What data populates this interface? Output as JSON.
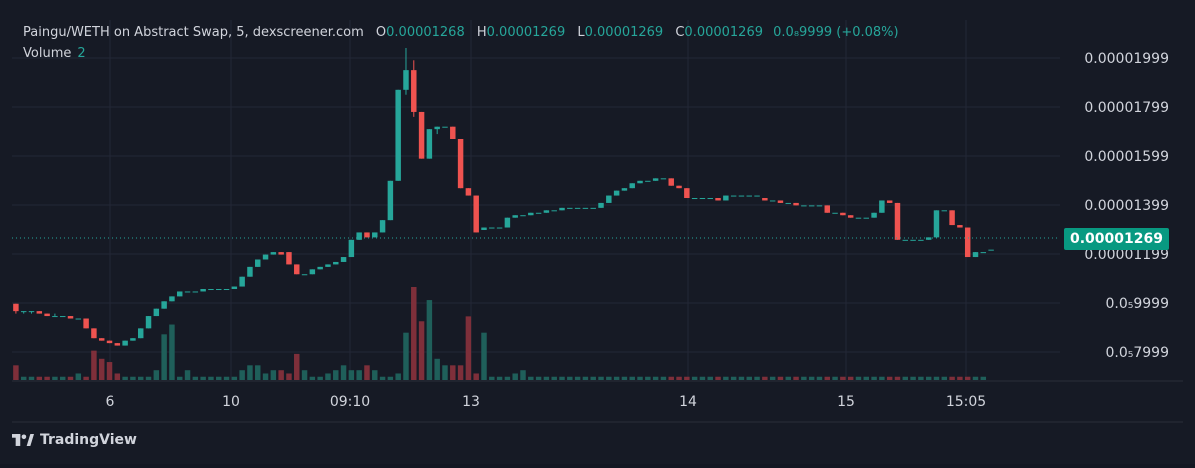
{
  "header": {
    "symbol": "Paingu/WETH on Abstract Swap, 5, dexscreener.com",
    "o_label": "O",
    "o_value": "0.00001268",
    "h_label": "H",
    "h_value": "0.00001269",
    "l_label": "L",
    "l_value": "0.00001269",
    "c_label": "C",
    "c_value": "0.00001269",
    "change": "0.0₈9999 (+0.08%)",
    "volume_label": "Volume",
    "volume_value": "2"
  },
  "price_axis": {
    "ticks": [
      "0.00001999",
      "0.00001799",
      "0.00001599",
      "0.00001399",
      "0.00001199",
      "0.0₅9999",
      "0.0₅7999"
    ],
    "current_price": "0.00001269"
  },
  "time_axis": {
    "ticks": [
      "6",
      "10",
      "09:10",
      "13",
      "14",
      "15",
      "15:05"
    ]
  },
  "branding": {
    "name": "TradingView"
  },
  "colors": {
    "up": "#26a69a",
    "down": "#ef5350",
    "vol_up": "#1f5f5a",
    "vol_down": "#7e2f3a",
    "background": "#161a25",
    "grid": "#232836"
  },
  "chart_data": {
    "type": "candlestick",
    "title": "Paingu/WETH on Abstract Swap, 5, dexscreener.com",
    "ylim": [
      7.4e-06,
      2.09e-05
    ],
    "candles": [
      [
        1.05e-05,
        1.05e-05,
        1.01e-05,
        1.02e-05
      ],
      [
        1.02e-05,
        1.02e-05,
        1.01e-05,
        1.02e-05
      ],
      [
        1.02e-05,
        1.02e-05,
        1.01e-05,
        1.02e-05
      ],
      [
        1.02e-05,
        1.02e-05,
        1.01e-05,
        1.01e-05
      ],
      [
        1.01e-05,
        1.01e-05,
        1e-05,
        1e-05
      ],
      [
        1e-05,
        1.01e-05,
        1e-05,
        1e-05
      ],
      [
        1e-05,
        1e-05,
        1e-05,
        1e-05
      ],
      [
        1e-05,
        1e-05,
        9.9e-06,
        9.9e-06
      ],
      [
        9.9e-06,
        9.9e-06,
        9.9e-06,
        9.9e-06
      ],
      [
        9.9e-06,
        9.9e-06,
        9.5e-06,
        9.5e-06
      ],
      [
        9.5e-06,
        9.5e-06,
        9.1e-06,
        9.1e-06
      ],
      [
        9.1e-06,
        9.1e-06,
        9e-06,
        9e-06
      ],
      [
        9e-06,
        9e-06,
        8.9e-06,
        8.9e-06
      ],
      [
        8.9e-06,
        8.9e-06,
        8.8e-06,
        8.8e-06
      ],
      [
        8.8e-06,
        9e-06,
        8.8e-06,
        9e-06
      ],
      [
        9e-06,
        9.1e-06,
        9e-06,
        9.1e-06
      ],
      [
        9.1e-06,
        9.5e-06,
        9.1e-06,
        9.5e-06
      ],
      [
        9.5e-06,
        1e-05,
        9.5e-06,
        1e-05
      ],
      [
        1e-05,
        1.03e-05,
        1e-05,
        1.03e-05
      ],
      [
        1.03e-05,
        1.06e-05,
        1.03e-05,
        1.06e-05
      ],
      [
        1.06e-05,
        1.08e-05,
        1.06e-05,
        1.08e-05
      ],
      [
        1.08e-05,
        1.1e-05,
        1.08e-05,
        1.1e-05
      ],
      [
        1.1e-05,
        1.1e-05,
        1.1e-05,
        1.1e-05
      ],
      [
        1.1e-05,
        1.1e-05,
        1.1e-05,
        1.1e-05
      ],
      [
        1.1e-05,
        1.11e-05,
        1.1e-05,
        1.11e-05
      ],
      [
        1.11e-05,
        1.11e-05,
        1.11e-05,
        1.11e-05
      ],
      [
        1.11e-05,
        1.11e-05,
        1.11e-05,
        1.11e-05
      ],
      [
        1.11e-05,
        1.11e-05,
        1.11e-05,
        1.11e-05
      ],
      [
        1.11e-05,
        1.12e-05,
        1.11e-05,
        1.12e-05
      ],
      [
        1.12e-05,
        1.16e-05,
        1.12e-05,
        1.16e-05
      ],
      [
        1.16e-05,
        1.2e-05,
        1.16e-05,
        1.2e-05
      ],
      [
        1.2e-05,
        1.23e-05,
        1.2e-05,
        1.23e-05
      ],
      [
        1.23e-05,
        1.25e-05,
        1.23e-05,
        1.25e-05
      ],
      [
        1.25e-05,
        1.26e-05,
        1.25e-05,
        1.26e-05
      ],
      [
        1.26e-05,
        1.26e-05,
        1.25e-05,
        1.25e-05
      ],
      [
        1.26e-05,
        1.26e-05,
        1.21e-05,
        1.21e-05
      ],
      [
        1.21e-05,
        1.21e-05,
        1.17e-05,
        1.17e-05
      ],
      [
        1.17e-05,
        1.17e-05,
        1.17e-05,
        1.17e-05
      ],
      [
        1.17e-05,
        1.19e-05,
        1.17e-05,
        1.19e-05
      ],
      [
        1.19e-05,
        1.2e-05,
        1.19e-05,
        1.2e-05
      ],
      [
        1.2e-05,
        1.21e-05,
        1.2e-05,
        1.21e-05
      ],
      [
        1.21e-05,
        1.22e-05,
        1.21e-05,
        1.22e-05
      ],
      [
        1.22e-05,
        1.24e-05,
        1.22e-05,
        1.24e-05
      ],
      [
        1.24e-05,
        1.31e-05,
        1.24e-05,
        1.31e-05
      ],
      [
        1.31e-05,
        1.34e-05,
        1.31e-05,
        1.34e-05
      ],
      [
        1.34e-05,
        1.34e-05,
        1.32e-05,
        1.32e-05
      ],
      [
        1.32e-05,
        1.34e-05,
        1.32e-05,
        1.34e-05
      ],
      [
        1.34e-05,
        1.39e-05,
        1.34e-05,
        1.39e-05
      ],
      [
        1.39e-05,
        1.55e-05,
        1.39e-05,
        1.55e-05
      ],
      [
        1.55e-05,
        1.92e-05,
        1.55e-05,
        1.92e-05
      ],
      [
        1.92e-05,
        2.09e-05,
        1.9e-05,
        2e-05
      ],
      [
        2e-05,
        2.04e-05,
        1.81e-05,
        1.83e-05
      ],
      [
        1.83e-05,
        1.83e-05,
        1.64e-05,
        1.64e-05
      ],
      [
        1.64e-05,
        1.76e-05,
        1.64e-05,
        1.76e-05
      ],
      [
        1.76e-05,
        1.77e-05,
        1.74e-05,
        1.77e-05
      ],
      [
        1.77e-05,
        1.77e-05,
        1.77e-05,
        1.77e-05
      ],
      [
        1.77e-05,
        1.77e-05,
        1.72e-05,
        1.72e-05
      ],
      [
        1.72e-05,
        1.72e-05,
        1.52e-05,
        1.52e-05
      ],
      [
        1.52e-05,
        1.52e-05,
        1.49e-05,
        1.49e-05
      ],
      [
        1.49e-05,
        1.49e-05,
        1.34e-05,
        1.34e-05
      ],
      [
        1.35e-05,
        1.36e-05,
        1.35e-05,
        1.36e-05
      ],
      [
        1.36e-05,
        1.36e-05,
        1.36e-05,
        1.36e-05
      ],
      [
        1.36e-05,
        1.36e-05,
        1.36e-05,
        1.36e-05
      ],
      [
        1.36e-05,
        1.4e-05,
        1.36e-05,
        1.4e-05
      ],
      [
        1.4e-05,
        1.41e-05,
        1.4e-05,
        1.41e-05
      ],
      [
        1.41e-05,
        1.41e-05,
        1.41e-05,
        1.41e-05
      ],
      [
        1.41e-05,
        1.42e-05,
        1.41e-05,
        1.42e-05
      ],
      [
        1.42e-05,
        1.42e-05,
        1.42e-05,
        1.42e-05
      ],
      [
        1.42e-05,
        1.43e-05,
        1.42e-05,
        1.43e-05
      ],
      [
        1.43e-05,
        1.43e-05,
        1.43e-05,
        1.43e-05
      ],
      [
        1.43e-05,
        1.44e-05,
        1.43e-05,
        1.44e-05
      ],
      [
        1.44e-05,
        1.44e-05,
        1.44e-05,
        1.44e-05
      ],
      [
        1.44e-05,
        1.44e-05,
        1.44e-05,
        1.44e-05
      ],
      [
        1.44e-05,
        1.44e-05,
        1.44e-05,
        1.44e-05
      ],
      [
        1.44e-05,
        1.44e-05,
        1.44e-05,
        1.44e-05
      ],
      [
        1.44e-05,
        1.46e-05,
        1.44e-05,
        1.46e-05
      ],
      [
        1.46e-05,
        1.49e-05,
        1.46e-05,
        1.49e-05
      ],
      [
        1.49e-05,
        1.51e-05,
        1.49e-05,
        1.51e-05
      ],
      [
        1.51e-05,
        1.52e-05,
        1.51e-05,
        1.52e-05
      ],
      [
        1.52e-05,
        1.54e-05,
        1.52e-05,
        1.54e-05
      ],
      [
        1.54e-05,
        1.55e-05,
        1.54e-05,
        1.55e-05
      ],
      [
        1.55e-05,
        1.55e-05,
        1.55e-05,
        1.55e-05
      ],
      [
        1.55e-05,
        1.56e-05,
        1.55e-05,
        1.56e-05
      ],
      [
        1.56e-05,
        1.56e-05,
        1.56e-05,
        1.56e-05
      ],
      [
        1.56e-05,
        1.56e-05,
        1.53e-05,
        1.53e-05
      ],
      [
        1.53e-05,
        1.53e-05,
        1.52e-05,
        1.52e-05
      ],
      [
        1.52e-05,
        1.52e-05,
        1.48e-05,
        1.48e-05
      ],
      [
        1.48e-05,
        1.48e-05,
        1.48e-05,
        1.48e-05
      ],
      [
        1.48e-05,
        1.48e-05,
        1.48e-05,
        1.48e-05
      ],
      [
        1.48e-05,
        1.48e-05,
        1.48e-05,
        1.48e-05
      ],
      [
        1.48e-05,
        1.48e-05,
        1.47e-05,
        1.47e-05
      ],
      [
        1.47e-05,
        1.49e-05,
        1.47e-05,
        1.49e-05
      ],
      [
        1.49e-05,
        1.49e-05,
        1.49e-05,
        1.49e-05
      ],
      [
        1.49e-05,
        1.49e-05,
        1.49e-05,
        1.49e-05
      ],
      [
        1.49e-05,
        1.49e-05,
        1.49e-05,
        1.49e-05
      ],
      [
        1.49e-05,
        1.49e-05,
        1.49e-05,
        1.49e-05
      ],
      [
        1.48e-05,
        1.48e-05,
        1.47e-05,
        1.47e-05
      ],
      [
        1.47e-05,
        1.47e-05,
        1.47e-05,
        1.47e-05
      ],
      [
        1.47e-05,
        1.47e-05,
        1.46e-05,
        1.46e-05
      ],
      [
        1.46e-05,
        1.46e-05,
        1.46e-05,
        1.46e-05
      ],
      [
        1.46e-05,
        1.46e-05,
        1.45e-05,
        1.45e-05
      ],
      [
        1.45e-05,
        1.45e-05,
        1.45e-05,
        1.45e-05
      ],
      [
        1.45e-05,
        1.45e-05,
        1.45e-05,
        1.45e-05
      ],
      [
        1.45e-05,
        1.45e-05,
        1.45e-05,
        1.45e-05
      ],
      [
        1.45e-05,
        1.45e-05,
        1.42e-05,
        1.42e-05
      ],
      [
        1.42e-05,
        1.42e-05,
        1.42e-05,
        1.42e-05
      ],
      [
        1.42e-05,
        1.42e-05,
        1.41e-05,
        1.41e-05
      ],
      [
        1.41e-05,
        1.41e-05,
        1.4e-05,
        1.4e-05
      ],
      [
        1.4e-05,
        1.4e-05,
        1.4e-05,
        1.4e-05
      ],
      [
        1.4e-05,
        1.4e-05,
        1.4e-05,
        1.4e-05
      ],
      [
        1.4e-05,
        1.42e-05,
        1.4e-05,
        1.42e-05
      ],
      [
        1.42e-05,
        1.47e-05,
        1.42e-05,
        1.47e-05
      ],
      [
        1.47e-05,
        1.47e-05,
        1.46e-05,
        1.46e-05
      ],
      [
        1.46e-05,
        1.46e-05,
        1.31e-05,
        1.31e-05
      ],
      [
        1.31e-05,
        1.31e-05,
        1.31e-05,
        1.31e-05
      ],
      [
        1.31e-05,
        1.31e-05,
        1.31e-05,
        1.31e-05
      ],
      [
        1.31e-05,
        1.31e-05,
        1.31e-05,
        1.31e-05
      ],
      [
        1.31e-05,
        1.32e-05,
        1.31e-05,
        1.32e-05
      ],
      [
        1.32e-05,
        1.43e-05,
        1.32e-05,
        1.43e-05
      ],
      [
        1.43e-05,
        1.43e-05,
        1.43e-05,
        1.43e-05
      ],
      [
        1.43e-05,
        1.43e-05,
        1.37e-05,
        1.37e-05
      ],
      [
        1.37e-05,
        1.37e-05,
        1.36e-05,
        1.36e-05
      ],
      [
        1.36e-05,
        1.36e-05,
        1.24e-05,
        1.24e-05
      ],
      [
        1.24e-05,
        1.26e-05,
        1.24e-05,
        1.26e-05
      ],
      [
        1.26e-05,
        1.26e-05,
        1.26e-05,
        1.26e-05
      ],
      [
        1.27e-05,
        1.27e-05,
        1.27e-05,
        1.27e-05
      ]
    ],
    "volume": [
      9,
      2,
      2,
      2,
      2,
      2,
      2,
      2,
      4,
      2,
      18,
      13,
      11,
      4,
      2,
      2,
      2,
      2,
      6,
      28,
      34,
      2,
      6,
      2,
      2,
      2,
      2,
      2,
      2,
      6,
      9,
      9,
      4,
      6,
      6,
      4,
      16,
      6,
      2,
      2,
      4,
      6,
      9,
      6,
      6,
      9,
      6,
      2,
      2,
      4,
      29,
      57,
      36,
      49,
      13,
      9,
      9,
      9,
      39,
      4,
      29,
      2,
      2,
      2,
      4,
      6,
      2,
      2,
      2,
      2,
      2,
      2,
      2,
      2,
      2,
      2,
      2,
      2,
      2,
      2,
      2,
      2,
      2,
      2,
      2,
      2,
      2,
      2,
      2,
      2,
      2,
      2,
      2,
      2,
      2,
      2,
      2,
      2,
      2,
      2,
      2,
      2,
      2,
      2,
      2,
      2,
      2,
      2,
      2,
      2,
      2,
      2,
      2,
      2,
      2,
      2,
      2,
      2,
      2,
      2,
      2,
      2,
      2,
      2,
      2
    ]
  }
}
